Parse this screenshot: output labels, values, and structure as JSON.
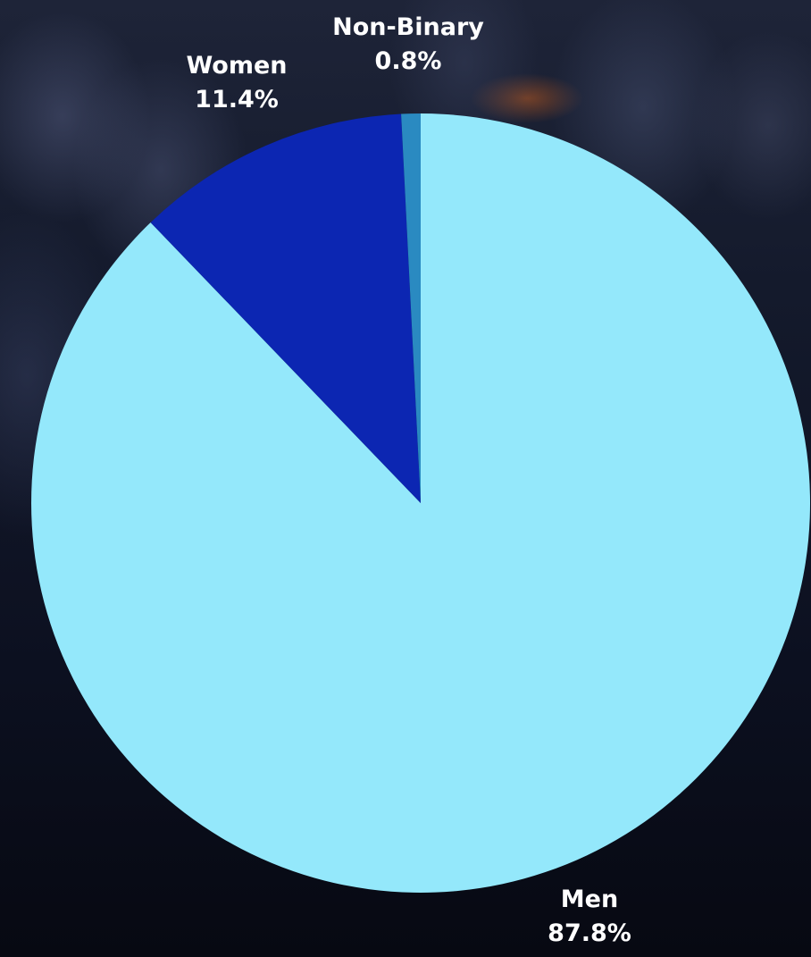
{
  "chart_data": {
    "type": "pie",
    "slices": [
      {
        "label": "Men",
        "value": 87.8,
        "value_label": "87.8%",
        "color": "#94e8fb"
      },
      {
        "label": "Women",
        "value": 11.4,
        "value_label": "11.4%",
        "color": "#0c26b2"
      },
      {
        "label": "Non-Binary",
        "value": 0.8,
        "value_label": "0.8%",
        "color": "#2a8ac1"
      }
    ],
    "start": "top",
    "direction": "clockwise",
    "background": "dark crowd photo"
  }
}
